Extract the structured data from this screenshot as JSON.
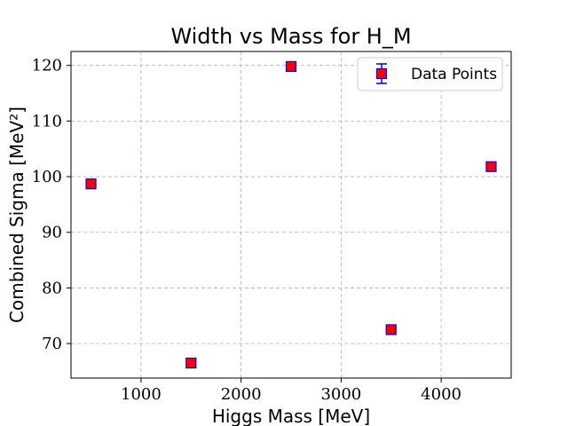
{
  "chart_data": {
    "type": "scatter",
    "title": "Width vs Mass for H_M",
    "xlabel": "Higgs Mass [MeV]",
    "ylabel": "Combined Sigma [MeV²]",
    "xlim": [
      300,
      4700
    ],
    "ylim": [
      63.8,
      122.5
    ],
    "xticks": [
      1000,
      2000,
      3000,
      4000
    ],
    "yticks": [
      70,
      80,
      90,
      100,
      110,
      120
    ],
    "grid": true,
    "legend_position": "top-right",
    "series": [
      {
        "name": "Data Points",
        "marker": "square",
        "face_color": "#ff0000",
        "edge_color": "#0000ff",
        "points": [
          {
            "x": 500,
            "y": 98.7,
            "yerr": 0.5
          },
          {
            "x": 1500,
            "y": 66.5,
            "yerr": 0.5
          },
          {
            "x": 2500,
            "y": 119.8,
            "yerr": 0.5
          },
          {
            "x": 3500,
            "y": 72.5,
            "yerr": 0.5
          },
          {
            "x": 4500,
            "y": 101.8,
            "yerr": 0.5
          }
        ]
      }
    ]
  }
}
